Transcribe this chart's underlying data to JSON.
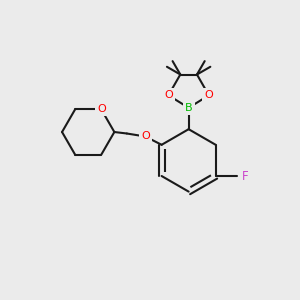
{
  "background_color": "#ebebeb",
  "bond_color": "#1a1a1a",
  "bond_width": 1.5,
  "atom_colors": {
    "O": "#ff0000",
    "B": "#00bb00",
    "F": "#cc44cc",
    "C": "#1a1a1a"
  },
  "figsize": [
    3.0,
    3.0
  ],
  "dpi": 100,
  "xlim": [
    0,
    10
  ],
  "ylim": [
    0,
    10
  ]
}
